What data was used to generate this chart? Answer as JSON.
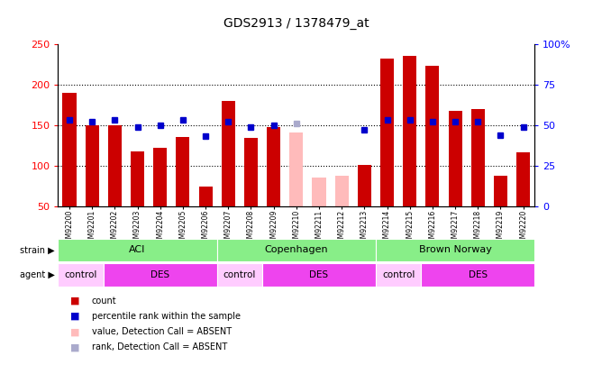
{
  "title": "GDS2913 / 1378479_at",
  "samples": [
    "GSM92200",
    "GSM92201",
    "GSM92202",
    "GSM92203",
    "GSM92204",
    "GSM92205",
    "GSM92206",
    "GSM92207",
    "GSM92208",
    "GSM92209",
    "GSM92210",
    "GSM92211",
    "GSM92212",
    "GSM92213",
    "GSM92214",
    "GSM92215",
    "GSM92216",
    "GSM92217",
    "GSM92218",
    "GSM92219",
    "GSM92220"
  ],
  "count_values": [
    190,
    150,
    150,
    117,
    122,
    135,
    74,
    180,
    134,
    148,
    141,
    85,
    87,
    101,
    232,
    235,
    223,
    167,
    170,
    88,
    116
  ],
  "count_absent": [
    false,
    false,
    false,
    false,
    false,
    false,
    false,
    false,
    false,
    false,
    true,
    true,
    true,
    false,
    false,
    false,
    false,
    false,
    false,
    false,
    false
  ],
  "rank_values": [
    53,
    52,
    53,
    49,
    50,
    53,
    43,
    52,
    49,
    50,
    51,
    null,
    null,
    47,
    53,
    53,
    52,
    52,
    52,
    44,
    49
  ],
  "rank_absent": [
    false,
    false,
    false,
    false,
    false,
    false,
    false,
    false,
    false,
    false,
    true,
    true,
    true,
    false,
    false,
    false,
    false,
    false,
    false,
    false,
    false
  ],
  "ylim_left": [
    50,
    250
  ],
  "ylim_right": [
    0,
    100
  ],
  "yticks_left": [
    50,
    100,
    150,
    200,
    250
  ],
  "yticks_right": [
    0,
    25,
    50,
    75,
    100
  ],
  "ytick_labels_right": [
    "0",
    "25",
    "50",
    "75",
    "100%"
  ],
  "grid_lines": [
    100,
    150,
    200
  ],
  "strains": [
    {
      "label": "ACI",
      "start": 0,
      "end": 6
    },
    {
      "label": "Copenhagen",
      "start": 7,
      "end": 13
    },
    {
      "label": "Brown Norway",
      "start": 14,
      "end": 20
    }
  ],
  "agents": [
    {
      "label": "control",
      "start": 0,
      "end": 1,
      "color": "#ffccff"
    },
    {
      "label": "DES",
      "start": 2,
      "end": 6,
      "color": "#ee44ee"
    },
    {
      "label": "control",
      "start": 7,
      "end": 8,
      "color": "#ffccff"
    },
    {
      "label": "DES",
      "start": 9,
      "end": 13,
      "color": "#ee44ee"
    },
    {
      "label": "control",
      "start": 14,
      "end": 15,
      "color": "#ffccff"
    },
    {
      "label": "DES",
      "start": 16,
      "end": 20,
      "color": "#ee44ee"
    }
  ],
  "strain_color": "#88ee88",
  "bar_color_present": "#cc0000",
  "bar_color_absent": "#ffbbbb",
  "rank_color_present": "#0000cc",
  "rank_color_absent": "#aaaacc",
  "legend_items": [
    {
      "color": "#cc0000",
      "label": "count"
    },
    {
      "color": "#0000cc",
      "label": "percentile rank within the sample"
    },
    {
      "color": "#ffbbbb",
      "label": "value, Detection Call = ABSENT"
    },
    {
      "color": "#aaaacc",
      "label": "rank, Detection Call = ABSENT"
    }
  ]
}
